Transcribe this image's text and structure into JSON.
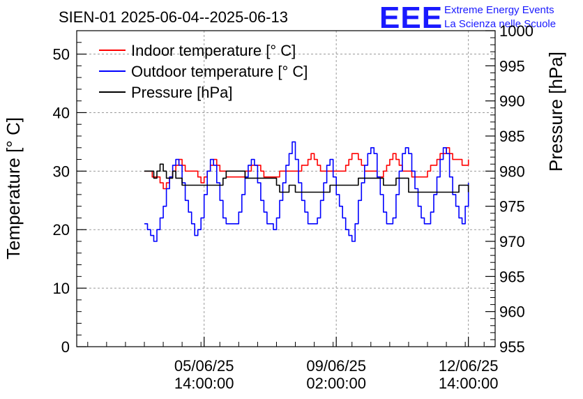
{
  "chart_data": {
    "type": "line",
    "title": "SIEN-01 2025-06-04--2025-06-13",
    "ylabel": "Temperature [° C]",
    "y2label": "Pressure [hPa]",
    "ylim": [
      0,
      54
    ],
    "y2lim": [
      955,
      1000
    ],
    "yticks": [
      0,
      10,
      20,
      30,
      40,
      50
    ],
    "y2ticks": [
      955,
      960,
      965,
      970,
      975,
      980,
      985,
      990,
      995,
      1000
    ],
    "xlim_hours": [
      -43,
      223
    ],
    "xticks": [
      {
        "hour": 38,
        "line1": "05/06/25",
        "line2": "14:00:00"
      },
      {
        "hour": 122,
        "line1": "09/06/25",
        "line2": "02:00:00"
      },
      {
        "hour": 206,
        "line1": "12/06/25",
        "line2": "14:00:00"
      }
    ],
    "x_note": "x values are hours since 04/06/25 00:00:00",
    "grid": true,
    "legend_position": "top-left",
    "series": [
      {
        "name": "Indoor temperature [° C]",
        "axis": "left",
        "color": "#ff0000",
        "x": [
          0,
          3,
          5,
          8,
          10,
          12,
          14,
          16,
          18,
          20,
          22,
          24,
          26,
          28,
          30,
          32,
          34,
          36,
          38,
          40,
          42,
          44,
          46,
          48,
          50,
          52,
          56,
          60,
          64,
          68,
          72,
          74,
          76,
          78,
          80,
          82,
          84,
          86,
          88,
          92,
          96,
          100,
          104,
          106,
          108,
          110,
          112,
          114,
          116,
          118,
          120,
          124,
          128,
          130,
          132,
          134,
          136,
          138,
          140,
          144,
          148,
          150,
          152,
          154,
          156,
          158,
          160,
          162,
          164,
          166,
          168,
          170,
          172,
          176,
          180,
          182,
          184,
          186,
          188,
          190,
          192,
          194,
          196,
          198,
          200,
          202,
          204,
          206
        ],
        "values": [
          30,
          30,
          29,
          29,
          28,
          27,
          28,
          29,
          30,
          31,
          32,
          31,
          30,
          30,
          30,
          30,
          29,
          28,
          29,
          30,
          31,
          32,
          31,
          30,
          30,
          29,
          29,
          29,
          30,
          31,
          31,
          30,
          29,
          29,
          29,
          29,
          29,
          30,
          30,
          30,
          30,
          31,
          32,
          33,
          32,
          31,
          30,
          30,
          30,
          30,
          30,
          30,
          31,
          32,
          33,
          33,
          32,
          31,
          30,
          30,
          29,
          29,
          30,
          31,
          32,
          33,
          32,
          31,
          30,
          30,
          30,
          29,
          29,
          29,
          30,
          31,
          31,
          32,
          33,
          33,
          34,
          33,
          32,
          32,
          32,
          31,
          31,
          32
        ]
      },
      {
        "name": "Outdoor temperature [° C]",
        "axis": "left",
        "color": "#0000ff",
        "x": [
          0,
          2,
          4,
          6,
          8,
          10,
          12,
          14,
          16,
          18,
          20,
          22,
          24,
          26,
          28,
          30,
          32,
          34,
          36,
          38,
          40,
          42,
          44,
          46,
          48,
          50,
          52,
          54,
          56,
          58,
          60,
          62,
          64,
          66,
          68,
          70,
          72,
          74,
          76,
          78,
          80,
          82,
          84,
          86,
          88,
          90,
          92,
          94,
          96,
          98,
          100,
          102,
          104,
          106,
          108,
          110,
          112,
          114,
          116,
          118,
          120,
          122,
          124,
          126,
          128,
          130,
          132,
          134,
          136,
          138,
          140,
          142,
          144,
          146,
          148,
          150,
          152,
          154,
          156,
          158,
          160,
          162,
          164,
          166,
          168,
          170,
          172,
          174,
          176,
          178,
          180,
          182,
          184,
          186,
          188,
          190,
          192,
          194,
          196,
          198,
          200,
          202,
          204,
          206
        ],
        "values": [
          21,
          20,
          19,
          18,
          20,
          22,
          24,
          27,
          29,
          31,
          32,
          31,
          28,
          25,
          23,
          21,
          19,
          20,
          22,
          26,
          30,
          32,
          31,
          28,
          25,
          22,
          21,
          21,
          21,
          21,
          23,
          26,
          29,
          31,
          32,
          31,
          28,
          25,
          23,
          21,
          21,
          20,
          22,
          25,
          28,
          31,
          33,
          35,
          32,
          28,
          25,
          23,
          21,
          21,
          21,
          22,
          25,
          28,
          31,
          32,
          29,
          26,
          24,
          22,
          20,
          19,
          18,
          21,
          25,
          28,
          31,
          33,
          34,
          33,
          29,
          26,
          23,
          21,
          21,
          22,
          26,
          30,
          33,
          34,
          33,
          30,
          27,
          24,
          22,
          21,
          21,
          23,
          26,
          29,
          32,
          34,
          33,
          29,
          26,
          24,
          22,
          21,
          24,
          28
        ]
      },
      {
        "name": "Pressure [hPa]",
        "axis": "right",
        "color": "#000000",
        "x": [
          0,
          4,
          6,
          8,
          10,
          12,
          14,
          16,
          18,
          20,
          24,
          28,
          32,
          36,
          40,
          44,
          48,
          50,
          52,
          56,
          60,
          64,
          68,
          72,
          76,
          80,
          84,
          86,
          88,
          90,
          92,
          96,
          100,
          104,
          108,
          112,
          116,
          118,
          120,
          124,
          128,
          132,
          136,
          140,
          144,
          148,
          152,
          156,
          160,
          164,
          168,
          172,
          176,
          180,
          184,
          188,
          192,
          196,
          200,
          204,
          206
        ],
        "values": [
          980,
          980,
          979,
          980,
          981,
          980,
          979,
          979,
          980,
          979,
          978,
          978,
          978,
          978,
          978,
          978,
          978,
          979,
          980,
          980,
          980,
          979,
          979,
          979,
          979,
          979,
          978,
          977,
          977,
          977,
          978,
          977,
          977,
          977,
          977,
          977,
          977,
          978,
          978,
          978,
          978,
          978,
          979,
          979,
          979,
          979,
          978,
          978,
          979,
          979,
          977,
          977,
          977,
          977,
          977,
          977,
          977,
          977,
          978,
          978,
          977
        ]
      }
    ]
  },
  "logo": {
    "mark": "EEE",
    "line1": "Extreme Energy Events",
    "line2": "La Scienza nelle Scuole"
  }
}
